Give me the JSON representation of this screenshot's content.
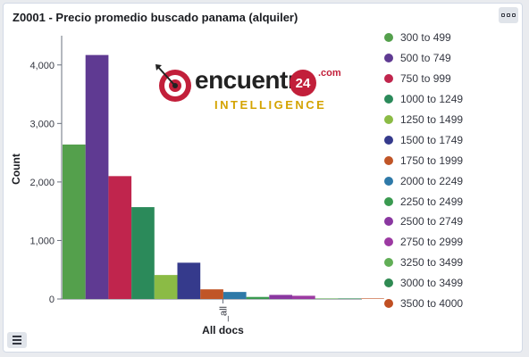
{
  "panel": {
    "title": "Z0001 - Precio promedio buscado panama (alquiler)"
  },
  "logo": {
    "word": "encuentra",
    "number": "24",
    "domain": ".com",
    "tagline": "INTELLIGENCE"
  },
  "colors": {
    "series": [
      "#54a04c",
      "#5f3a92",
      "#c0254d",
      "#2b8a5a",
      "#8bbb45",
      "#353a8c",
      "#c05527",
      "#2e79a8",
      "#3a9a50",
      "#8a37a0",
      "#9c3aa2",
      "#61ae56",
      "#2f8a52",
      "#c04f22"
    ]
  },
  "chart_data": {
    "type": "bar",
    "categories": [
      "_all"
    ],
    "xlabel": "All docs",
    "ylabel": "Count",
    "ylim": [
      0,
      4500
    ],
    "yticks": [
      "0",
      "1,000",
      "2,000",
      "3,000",
      "4,000"
    ],
    "ytick_values": [
      0,
      1000,
      2000,
      3000,
      4000
    ],
    "legend_position": "right",
    "series": [
      {
        "name": "300 to 499",
        "values": [
          2640
        ]
      },
      {
        "name": "500 to 749",
        "values": [
          4170
        ]
      },
      {
        "name": "750 to 999",
        "values": [
          2100
        ]
      },
      {
        "name": "1000 to 1249",
        "values": [
          1570
        ]
      },
      {
        "name": "1250 to 1499",
        "values": [
          410
        ]
      },
      {
        "name": "1500 to 1749",
        "values": [
          620
        ]
      },
      {
        "name": "1750 to 1999",
        "values": [
          165
        ]
      },
      {
        "name": "2000 to 2249",
        "values": [
          120
        ]
      },
      {
        "name": "2250 to 2499",
        "values": [
          35
        ]
      },
      {
        "name": "2500 to 2749",
        "values": [
          70
        ]
      },
      {
        "name": "2750 to 2999",
        "values": [
          55
        ]
      },
      {
        "name": "3250 to 3499",
        "values": [
          3
        ]
      },
      {
        "name": "3000 to 3499",
        "values": [
          2
        ]
      },
      {
        "name": "3500 to 4000",
        "values": [
          1
        ]
      }
    ]
  }
}
